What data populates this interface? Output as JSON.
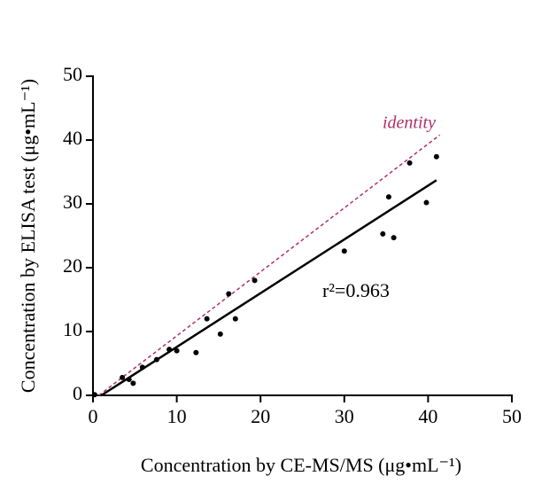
{
  "chart_data": {
    "type": "scatter",
    "x_label": "Concentration by CE-MS/MS (μg•mL⁻¹)",
    "y_label": "Concentration by ELISA test (μg•mL⁻¹)",
    "xlim": [
      0,
      50
    ],
    "ylim": [
      0,
      50
    ],
    "xticks": [
      0,
      10,
      20,
      30,
      40,
      50
    ],
    "yticks": [
      0,
      10,
      20,
      30,
      40,
      50
    ],
    "points": {
      "color": "#000000",
      "x": [
        0.2,
        3.5,
        4.3,
        4.8,
        5.9,
        7.6,
        9.1,
        10,
        12.3,
        13.6,
        15.2,
        16.2,
        17,
        19.3,
        30,
        34.6,
        35.3,
        35.9,
        37.8,
        39.8,
        41
      ],
      "y": [
        0.1,
        2.8,
        2.5,
        1.9,
        4.4,
        5.6,
        7.2,
        7,
        6.7,
        12,
        9.6,
        15.9,
        12,
        18,
        22.6,
        25.3,
        31.1,
        24.7,
        36.4,
        30.2,
        37.4
      ]
    },
    "fit_line": {
      "color": "#000000",
      "x": [
        1,
        41
      ],
      "y": [
        0,
        33.7
      ]
    },
    "identity_line": {
      "color": "#b0306a",
      "x": [
        0.7,
        41.4
      ],
      "y": [
        0,
        40.8
      ]
    },
    "identity_label": "identity",
    "fit_label": "r²=0.963"
  }
}
